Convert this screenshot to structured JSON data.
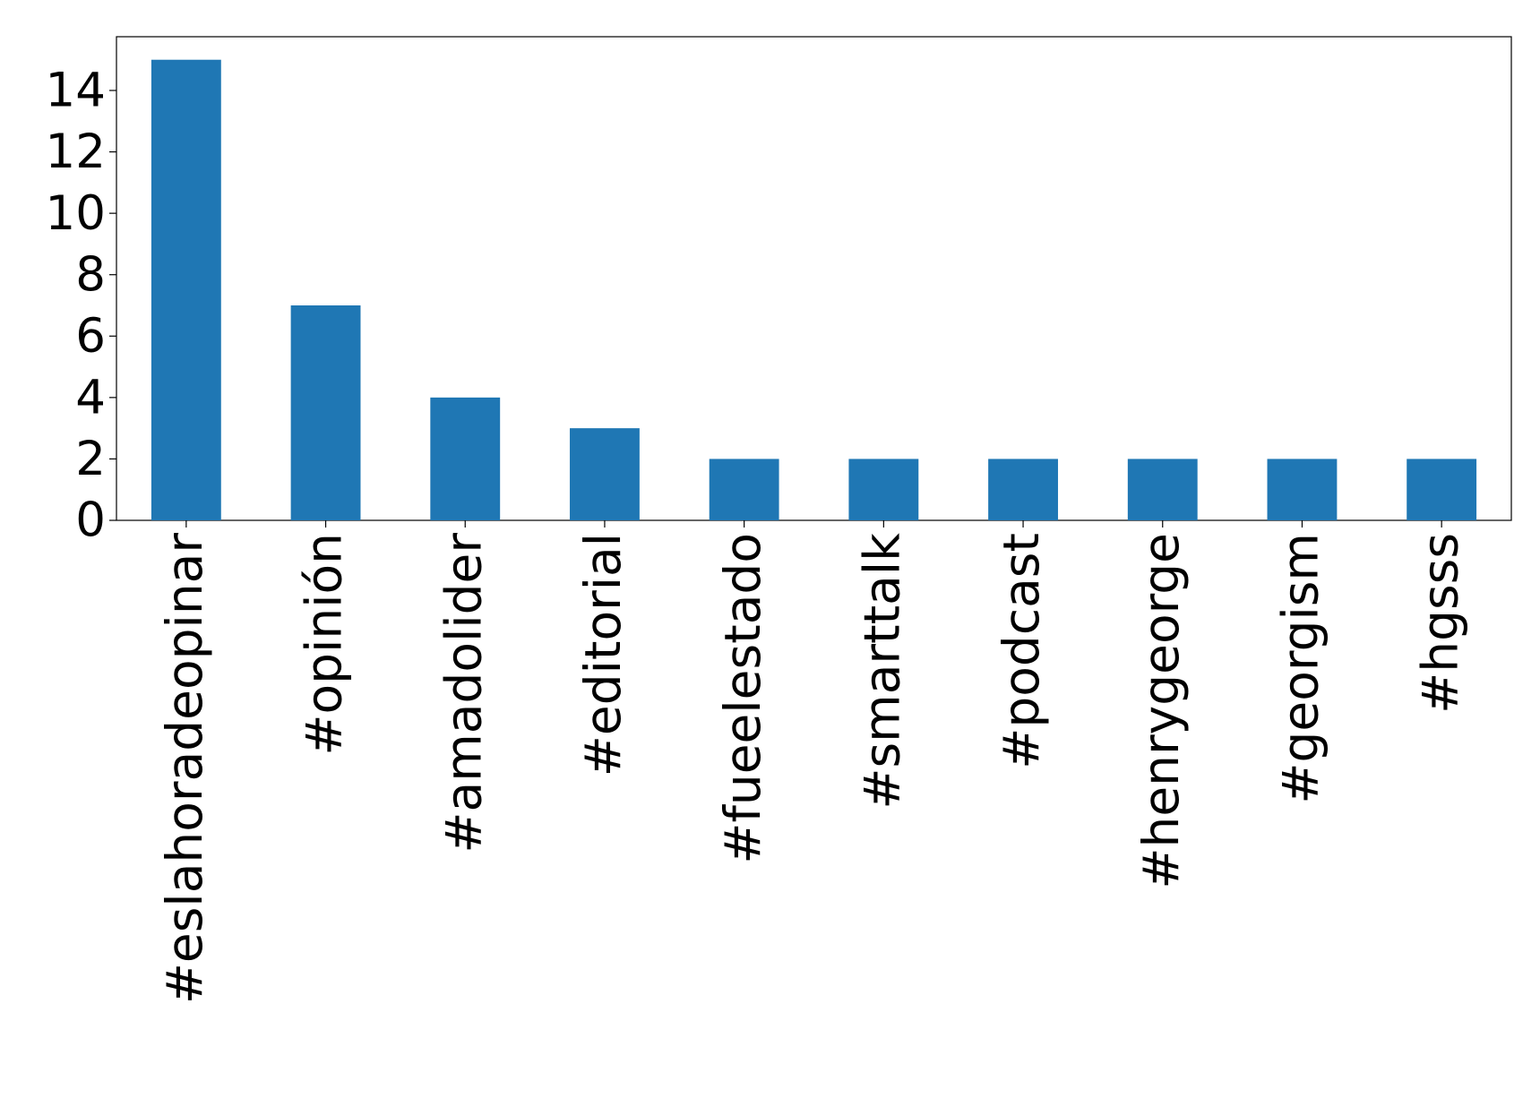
{
  "chart_data": {
    "type": "bar",
    "categories": [
      "#eslahoradeopinar",
      "#opinión",
      "#amadolider",
      "#editorial",
      "#fueelestado",
      "#smarttalk",
      "#podcast",
      "#henrygeorge",
      "#georgism",
      "#hgsss"
    ],
    "values": [
      15,
      7,
      4,
      3,
      2,
      2,
      2,
      2,
      2,
      2
    ],
    "color": "#1f77b4",
    "ylim": [
      0,
      15.75
    ],
    "yticks": [
      0,
      2,
      4,
      6,
      8,
      10,
      12,
      14
    ],
    "grid": false
  }
}
